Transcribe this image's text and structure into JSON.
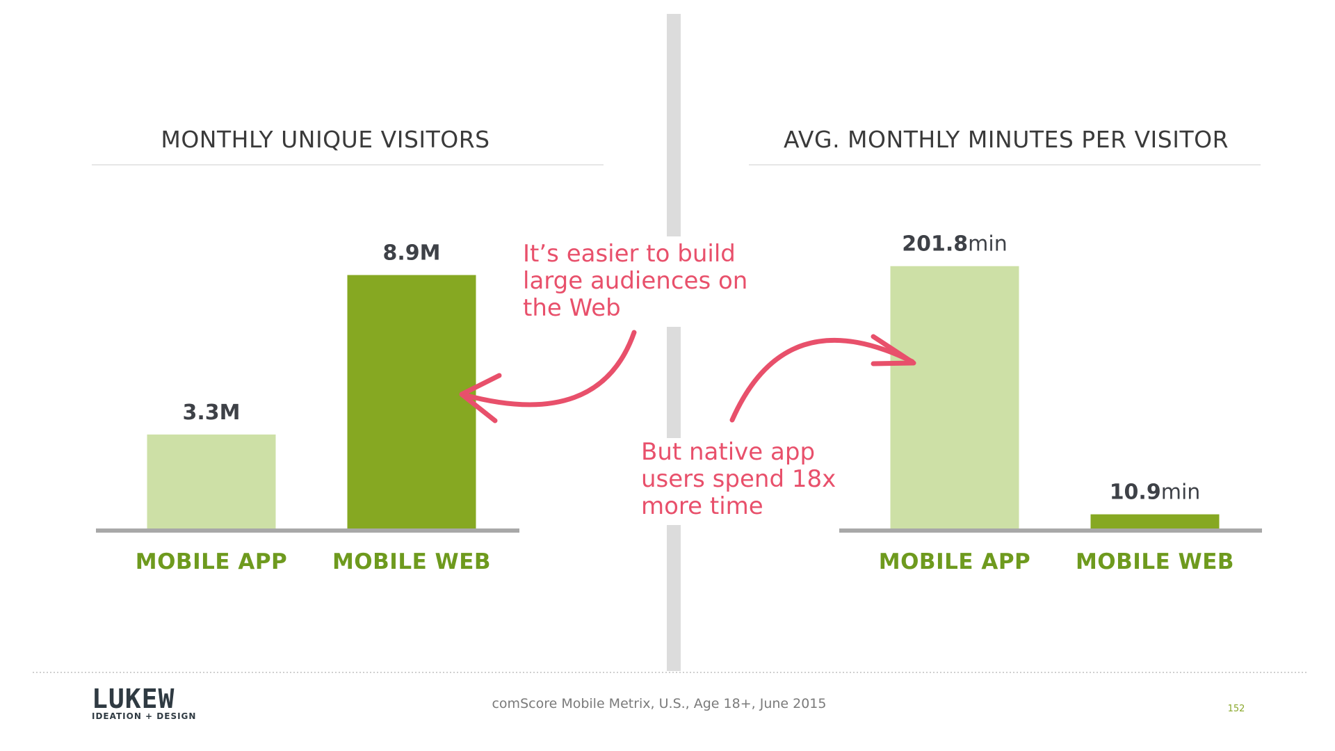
{
  "footer": {
    "source": "comScore Mobile Metrix, U.S., Age 18+, June 2015",
    "page_number": "152",
    "logo_text": "LUKEW",
    "logo_tagline": "IDEATION + DESIGN"
  },
  "annotations": {
    "left": [
      "It’s easier to build",
      "large audiences on",
      "the Web"
    ],
    "right": [
      "But native app",
      "users spend 18x",
      "more time"
    ]
  },
  "colors": {
    "app_bar": "#cde0a6",
    "web_bar": "#86a822",
    "category_label": "#6e9a1e",
    "annotation": "#e8506b",
    "divider": "#dcdcdc",
    "baseline": "#a8a8a8"
  },
  "chart_data": [
    {
      "type": "bar",
      "title": "MONTHLY UNIQUE VISITORS",
      "categories": [
        "MOBILE APP",
        "MOBILE WEB"
      ],
      "values": [
        3.3,
        8.9
      ],
      "value_labels": [
        "3.3M",
        "8.9M"
      ],
      "unit": "",
      "ylim": [
        0,
        10.5
      ],
      "grid": false,
      "legend": "none"
    },
    {
      "type": "bar",
      "title": "AVG. MONTHLY MINUTES PER VISITOR",
      "categories": [
        "MOBILE APP",
        "MOBILE WEB"
      ],
      "values": [
        201.8,
        10.9
      ],
      "value_labels": [
        "201.8",
        "10.9"
      ],
      "unit": "min",
      "ylim": [
        0,
        230
      ],
      "grid": false,
      "legend": "none"
    }
  ]
}
